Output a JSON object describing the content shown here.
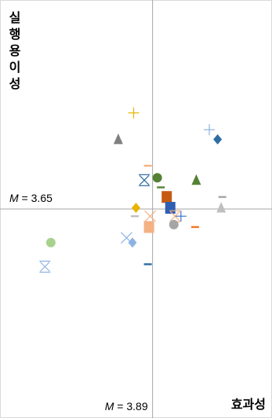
{
  "chart_data": {
    "type": "scatter",
    "xlabel": "효과성",
    "ylabel": "실행용이성",
    "x_mean": {
      "symbol": "M",
      "value": "3.89"
    },
    "y_mean": {
      "symbol": "M",
      "value": "3.65"
    },
    "xlim": [
      2.6,
      4.9
    ],
    "ylim": [
      2.78,
      4.52
    ],
    "points": [
      {
        "x": 3.73,
        "y": 4.05,
        "marker": "plus",
        "color": "#e8b400"
      },
      {
        "x": 4.37,
        "y": 3.98,
        "marker": "plus",
        "color": "#8db3e2"
      },
      {
        "x": 4.44,
        "y": 3.94,
        "marker": "diamond",
        "color": "#2e6ca4"
      },
      {
        "x": 3.6,
        "y": 3.94,
        "marker": "triangle",
        "color": "#7f7f7f"
      },
      {
        "x": 3.85,
        "y": 3.83,
        "marker": "dash",
        "color": "#f4b183"
      },
      {
        "x": 3.82,
        "y": 3.77,
        "marker": "asterisk",
        "color": "#2e6ca4"
      },
      {
        "x": 3.93,
        "y": 3.78,
        "marker": "circle",
        "color": "#548235"
      },
      {
        "x": 3.96,
        "y": 3.74,
        "marker": "dash",
        "color": "#548235"
      },
      {
        "x": 4.26,
        "y": 3.77,
        "marker": "triangle",
        "color": "#548235"
      },
      {
        "x": 4.01,
        "y": 3.7,
        "marker": "square",
        "color": "#c55a11"
      },
      {
        "x": 4.48,
        "y": 3.7,
        "marker": "dash",
        "color": "#a5a5a5"
      },
      {
        "x": 4.04,
        "y": 3.655,
        "marker": "square",
        "color": "#2f5fb3"
      },
      {
        "x": 4.47,
        "y": 3.655,
        "marker": "triangle",
        "color": "#bfbfbf"
      },
      {
        "x": 3.75,
        "y": 3.655,
        "marker": "diamond",
        "color": "#e8b400"
      },
      {
        "x": 3.74,
        "y": 3.62,
        "marker": "dash",
        "color": "#bfbfbf"
      },
      {
        "x": 3.87,
        "y": 3.62,
        "marker": "x",
        "color": "#f4b183"
      },
      {
        "x": 4.08,
        "y": 3.62,
        "marker": "asterisk",
        "color": "#f4b183"
      },
      {
        "x": 4.13,
        "y": 3.62,
        "marker": "plus",
        "color": "#4472c4"
      },
      {
        "x": 3.86,
        "y": 3.575,
        "marker": "square",
        "color": "#f4b183"
      },
      {
        "x": 4.07,
        "y": 3.585,
        "marker": "circle",
        "color": "#a5a5a5"
      },
      {
        "x": 4.25,
        "y": 3.575,
        "marker": "dash",
        "color": "#f4761f"
      },
      {
        "x": 3.67,
        "y": 3.53,
        "marker": "x",
        "color": "#8db3e2"
      },
      {
        "x": 3.72,
        "y": 3.51,
        "marker": "diamond",
        "color": "#8db3e2"
      },
      {
        "x": 3.03,
        "y": 3.51,
        "marker": "circle",
        "color": "#a9d18e"
      },
      {
        "x": 3.85,
        "y": 3.42,
        "marker": "dash",
        "color": "#2e6ca4"
      },
      {
        "x": 2.98,
        "y": 3.41,
        "marker": "asterisk",
        "color": "#8db3e2"
      }
    ]
  }
}
